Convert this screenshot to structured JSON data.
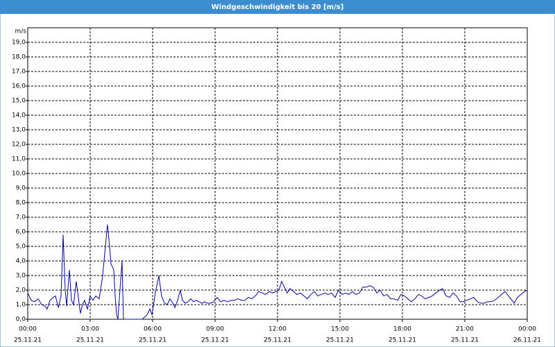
{
  "chart_data": {
    "type": "line",
    "title": "Windgeschwindigkeit bis 20 [m/s]",
    "y_label": "m/s",
    "xlim": [
      0,
      24
    ],
    "ylim": [
      0,
      20
    ],
    "grid": true,
    "xticks": [
      {
        "value": 0,
        "label": "00:00",
        "date": "25.11.21"
      },
      {
        "value": 3,
        "label": "03:00",
        "date": "25.11.21"
      },
      {
        "value": 6,
        "label": "06:00",
        "date": "25.11.21"
      },
      {
        "value": 9,
        "label": "09:00",
        "date": "25.11.21"
      },
      {
        "value": 12,
        "label": "12:00",
        "date": "25.11.21"
      },
      {
        "value": 15,
        "label": "15:00",
        "date": "25.11.21"
      },
      {
        "value": 18,
        "label": "18:00",
        "date": "25.11.21"
      },
      {
        "value": 21,
        "label": "21:00",
        "date": "25.11.21"
      },
      {
        "value": 24,
        "label": "00:00",
        "date": "26.11.21"
      }
    ],
    "yticks": [
      {
        "value": 0,
        "label": "0,0"
      },
      {
        "value": 1,
        "label": "1,0"
      },
      {
        "value": 2,
        "label": "2,0"
      },
      {
        "value": 3,
        "label": "3,0"
      },
      {
        "value": 4,
        "label": "4,0"
      },
      {
        "value": 5,
        "label": "5,0"
      },
      {
        "value": 6,
        "label": "6,0"
      },
      {
        "value": 7,
        "label": "7,0"
      },
      {
        "value": 8,
        "label": "8,0"
      },
      {
        "value": 9,
        "label": "9,0"
      },
      {
        "value": 10,
        "label": "10,0"
      },
      {
        "value": 11,
        "label": "11,0"
      },
      {
        "value": 12,
        "label": "12,0"
      },
      {
        "value": 13,
        "label": "13,0"
      },
      {
        "value": 14,
        "label": "14,0"
      },
      {
        "value": 15,
        "label": "15,0"
      },
      {
        "value": 16,
        "label": "16,0"
      },
      {
        "value": 17,
        "label": "17,0"
      },
      {
        "value": 18,
        "label": "18,0"
      },
      {
        "value": 19,
        "label": "19,0"
      }
    ],
    "series": [
      {
        "color": "#0000a8",
        "x": [
          0,
          0.17,
          0.33,
          0.5,
          0.67,
          0.83,
          0.93,
          1.07,
          1.23,
          1.33,
          1.47,
          1.6,
          1.7,
          1.8,
          1.87,
          2,
          2.1,
          2.2,
          2.33,
          2.43,
          2.53,
          2.63,
          2.73,
          2.87,
          3,
          3.13,
          3.27,
          3.43,
          3.6,
          3.73,
          3.83,
          3.93,
          4,
          4.13,
          4.2,
          4.27,
          4.33,
          4.43,
          4.53,
          4.6,
          4.7,
          5.5,
          5.73,
          5.87,
          5.97,
          6.13,
          6.3,
          6.43,
          6.57,
          6.7,
          6.83,
          6.97,
          7.07,
          7.2,
          7.33,
          7.43,
          7.57,
          7.7,
          7.83,
          7.97,
          8.1,
          8.23,
          8.37,
          8.5,
          8.63,
          8.8,
          8.93,
          9.1,
          9.27,
          9.43,
          9.6,
          9.77,
          9.93,
          10.1,
          10.27,
          10.43,
          10.6,
          10.77,
          10.93,
          11.1,
          11.27,
          11.43,
          11.6,
          11.77,
          11.93,
          12.07,
          12.2,
          12.33,
          12.47,
          12.6,
          12.77,
          12.93,
          13.1,
          13.27,
          13.43,
          13.6,
          13.77,
          13.93,
          14.1,
          14.27,
          14.43,
          14.6,
          14.77,
          14.93,
          15.1,
          15.27,
          15.43,
          15.6,
          15.77,
          15.93,
          16.1,
          16.27,
          16.43,
          16.6,
          16.77,
          16.93,
          17.1,
          17.27,
          17.43,
          17.6,
          17.77,
          17.93,
          18.1,
          18.27,
          18.43,
          18.6,
          18.77,
          18.93,
          19.1,
          19.27,
          19.43,
          19.6,
          19.8,
          19.93,
          20.1,
          20.27,
          20.43,
          20.6,
          20.77,
          20.93,
          21.1,
          21.27,
          21.43,
          21.6,
          21.77,
          21.93,
          22.1,
          22.27,
          22.43,
          22.6,
          22.77,
          22.93,
          23.1,
          23.27,
          23.37,
          23.53,
          23.7,
          23.87,
          24
        ],
        "values": [
          1.8,
          1.3,
          1.2,
          1.4,
          1.0,
          0.9,
          0.7,
          1.3,
          1.5,
          1.6,
          0.8,
          1.6,
          5.8,
          2.0,
          0.9,
          3.4,
          1.3,
          1.0,
          2.6,
          1.5,
          0.4,
          1.0,
          1.3,
          0.7,
          1.6,
          1.3,
          1.6,
          1.4,
          3.0,
          5.0,
          6.5,
          5.0,
          3.8,
          3.4,
          1.6,
          0.3,
          0.0,
          2.0,
          4.0,
          0.0,
          0.0,
          0.0,
          0.3,
          0.7,
          0.3,
          1.8,
          3.0,
          1.6,
          1.1,
          1.0,
          1.4,
          1.1,
          0.8,
          1.3,
          2.0,
          1.3,
          1.1,
          1.2,
          1.4,
          1.2,
          1.3,
          1.2,
          1.1,
          1.2,
          1.1,
          1.1,
          1.2,
          1.5,
          1.2,
          1.3,
          1.2,
          1.3,
          1.3,
          1.4,
          1.3,
          1.3,
          1.5,
          1.4,
          1.6,
          1.9,
          1.8,
          1.7,
          1.9,
          1.8,
          1.9,
          2.0,
          2.6,
          2.2,
          1.8,
          2.1,
          1.9,
          1.7,
          1.8,
          1.6,
          1.4,
          1.7,
          1.9,
          1.6,
          1.7,
          1.8,
          1.7,
          1.8,
          1.5,
          2.0,
          1.7,
          1.8,
          1.7,
          1.9,
          1.7,
          1.8,
          2.2,
          2.2,
          2.3,
          2.2,
          1.8,
          2.0,
          1.6,
          1.7,
          1.4,
          1.4,
          1.3,
          1.7,
          1.6,
          1.4,
          1.2,
          1.4,
          1.7,
          1.6,
          1.4,
          1.5,
          1.6,
          1.8,
          2.0,
          2.1,
          1.6,
          1.5,
          1.8,
          1.6,
          1.2,
          1.2,
          1.3,
          1.4,
          1.5,
          1.2,
          1.1,
          1.1,
          1.2,
          1.2,
          1.3,
          1.5,
          1.7,
          1.9,
          1.6,
          1.3,
          1.1,
          1.5,
          1.7,
          1.9,
          2.0
        ]
      }
    ]
  }
}
